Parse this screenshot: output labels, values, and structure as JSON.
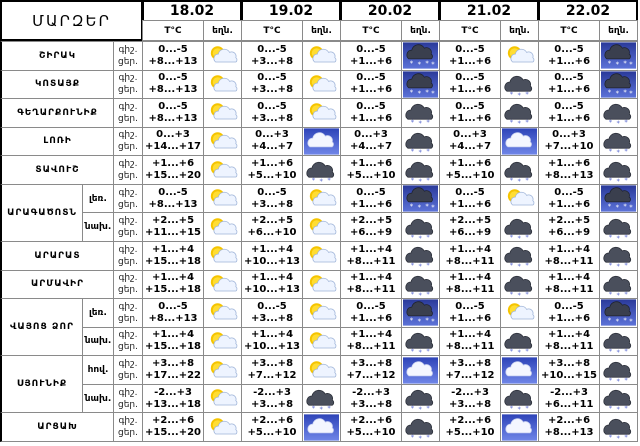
{
  "header": {
    "title": "ՄԱՐԶԵՐ",
    "dates": [
      "18.02",
      "19.02",
      "20.02",
      "21.02",
      "22.02"
    ],
    "temp_label": "T°C",
    "icon_label": "եղն."
  },
  "night_label": "գիշ.",
  "day_label": "ցեր.",
  "groups": [
    {
      "region": "ՇԻՐԱԿ",
      "zones": [
        {
          "days": [
            {
              "night": "0...-5",
              "day": "+8...+13",
              "icon": "sun-cloud"
            },
            {
              "night": "0...-5",
              "day": "+3...+8",
              "icon": "sun-cloud"
            },
            {
              "night": "0...-5",
              "day": "+1...+6",
              "icon": "snow"
            },
            {
              "night": "0...-5",
              "day": "+1...+6",
              "icon": "sun-cloud"
            },
            {
              "night": "0...-5",
              "day": "+1...+6",
              "icon": "snow"
            }
          ]
        }
      ]
    },
    {
      "region": "ԿՈՏԱՅՔ",
      "zones": [
        {
          "days": [
            {
              "night": "0...-5",
              "day": "+8...+13",
              "icon": "sun-cloud"
            },
            {
              "night": "0...-5",
              "day": "+3...+8",
              "icon": "sun-cloud"
            },
            {
              "night": "0...-5",
              "day": "+1...+6",
              "icon": "snow"
            },
            {
              "night": "0...-5",
              "day": "+1...+6",
              "icon": "cloud-snow"
            },
            {
              "night": "0...-5",
              "day": "+1...+6",
              "icon": "snow"
            }
          ]
        }
      ]
    },
    {
      "region": "ԳԵՂԱՐՔՈՒՆԻՔ",
      "zones": [
        {
          "days": [
            {
              "night": "0...-5",
              "day": "+8...+13",
              "icon": "sun-cloud"
            },
            {
              "night": "0...-5",
              "day": "+3...+8",
              "icon": "sun-cloud"
            },
            {
              "night": "0...-5",
              "day": "+1...+6",
              "icon": "cloud-snow"
            },
            {
              "night": "0...-5",
              "day": "+1...+6",
              "icon": "cloud-snow"
            },
            {
              "night": "0...-5",
              "day": "+1...+6",
              "icon": "cloud-snow"
            }
          ]
        }
      ]
    },
    {
      "region": "ԼՈՌԻ",
      "zones": [
        {
          "days": [
            {
              "night": "0...+3",
              "day": "+14...+17",
              "icon": "sun-cloud"
            },
            {
              "night": "0...+3",
              "day": "+4...+7",
              "icon": "cloud"
            },
            {
              "night": "0...+3",
              "day": "+4...+7",
              "icon": "cloud-snow"
            },
            {
              "night": "0...+3",
              "day": "+4...+7",
              "icon": "cloud"
            },
            {
              "night": "0...+3",
              "day": "+7...+10",
              "icon": "cloud-snow"
            }
          ]
        }
      ]
    },
    {
      "region": "ՏԱՎՈՒՇ",
      "zones": [
        {
          "days": [
            {
              "night": "+1...+6",
              "day": "+15...+20",
              "icon": "sun-cloud"
            },
            {
              "night": "+1...+6",
              "day": "+5...+10",
              "icon": "cloud-snow"
            },
            {
              "night": "+1...+6",
              "day": "+5...+10",
              "icon": "cloud-snow"
            },
            {
              "night": "+1...+6",
              "day": "+5...+10",
              "icon": "cloud-snow"
            },
            {
              "night": "+1...+6",
              "day": "+8...+13",
              "icon": "cloud-snow"
            }
          ]
        }
      ]
    },
    {
      "region": "ԱՐԱԳԱԾՈՏՆ",
      "zones": [
        {
          "zone": "լեռ.",
          "days": [
            {
              "night": "0...-5",
              "day": "+8...+13",
              "icon": "sun-cloud"
            },
            {
              "night": "0...-5",
              "day": "+3...+8",
              "icon": "sun-cloud"
            },
            {
              "night": "0...-5",
              "day": "+1...+6",
              "icon": "snow"
            },
            {
              "night": "0...-5",
              "day": "+1...+6",
              "icon": "sun-cloud"
            },
            {
              "night": "0...-5",
              "day": "+1...+6",
              "icon": "snow"
            }
          ]
        },
        {
          "zone": "նախ.",
          "days": [
            {
              "night": "+2...+5",
              "day": "+11...+15",
              "icon": "sun-cloud"
            },
            {
              "night": "+2...+5",
              "day": "+6...+10",
              "icon": "sun-cloud"
            },
            {
              "night": "+2...+5",
              "day": "+6...+9",
              "icon": "cloud-snow"
            },
            {
              "night": "+2...+5",
              "day": "+6...+9",
              "icon": "cloud-snow"
            },
            {
              "night": "+2...+5",
              "day": "+6...+9",
              "icon": "cloud-snow"
            }
          ]
        }
      ]
    },
    {
      "region": "ԱՐԱՐԱՏ",
      "zones": [
        {
          "days": [
            {
              "night": "+1...+4",
              "day": "+15...+18",
              "icon": "sun-cloud"
            },
            {
              "night": "+1...+4",
              "day": "+10...+13",
              "icon": "sun-cloud"
            },
            {
              "night": "+1...+4",
              "day": "+8...+11",
              "icon": "cloud-snow"
            },
            {
              "night": "+1...+4",
              "day": "+8...+11",
              "icon": "cloud-snow"
            },
            {
              "night": "+1...+4",
              "day": "+8...+11",
              "icon": "cloud-snow"
            }
          ]
        }
      ]
    },
    {
      "region": "ԱՐՄԱՎԻՐ",
      "zones": [
        {
          "days": [
            {
              "night": "+1...+4",
              "day": "+15...+18",
              "icon": "sun-cloud"
            },
            {
              "night": "+1...+4",
              "day": "+10...+13",
              "icon": "sun-cloud"
            },
            {
              "night": "+1...+4",
              "day": "+8...+11",
              "icon": "cloud-snow"
            },
            {
              "night": "+1...+4",
              "day": "+8...+11",
              "icon": "cloud-snow"
            },
            {
              "night": "+1...+4",
              "day": "+8...+11",
              "icon": "cloud-snow"
            }
          ]
        }
      ]
    },
    {
      "region": "ՎԱՅՈՑ ՁՈՐ",
      "zones": [
        {
          "zone": "լեռ.",
          "days": [
            {
              "night": "0...-5",
              "day": "+8...+13",
              "icon": "sun-cloud"
            },
            {
              "night": "0...-5",
              "day": "+3...+8",
              "icon": "sun-cloud"
            },
            {
              "night": "0...-5",
              "day": "+1...+6",
              "icon": "snow"
            },
            {
              "night": "0...-5",
              "day": "+1...+6",
              "icon": "sun-cloud"
            },
            {
              "night": "0...-5",
              "day": "+1...+6",
              "icon": "snow"
            }
          ]
        },
        {
          "zone": "նախ.",
          "days": [
            {
              "night": "+1...+4",
              "day": "+15...+18",
              "icon": "sun-cloud"
            },
            {
              "night": "+1...+4",
              "day": "+10...+13",
              "icon": "sun-cloud"
            },
            {
              "night": "+1...+4",
              "day": "+8...+11",
              "icon": "cloud-snow"
            },
            {
              "night": "+1...+4",
              "day": "+8...+11",
              "icon": "cloud-snow"
            },
            {
              "night": "+1...+4",
              "day": "+8...+11",
              "icon": "cloud-snow"
            }
          ]
        }
      ]
    },
    {
      "region": "ՍՅՈՒՆԻՔ",
      "zones": [
        {
          "zone": "հով.",
          "days": [
            {
              "night": "+3...+8",
              "day": "+17...+22",
              "icon": "sun-cloud"
            },
            {
              "night": "+3...+8",
              "day": "+7...+12",
              "icon": "sun-cloud"
            },
            {
              "night": "+3...+8",
              "day": "+7...+12",
              "icon": "cloud"
            },
            {
              "night": "+3...+8",
              "day": "+7...+12",
              "icon": "cloud"
            },
            {
              "night": "+3...+8",
              "day": "+10...+15",
              "icon": "cloud-snow"
            }
          ]
        },
        {
          "zone": "նախ.",
          "days": [
            {
              "night": "-2...+3",
              "day": "+13...+18",
              "icon": "sun-cloud"
            },
            {
              "night": "-2...+3",
              "day": "+3...+8",
              "icon": "cloud-snow"
            },
            {
              "night": "-2...+3",
              "day": "+3...+8",
              "icon": "cloud-snow"
            },
            {
              "night": "-2...+3",
              "day": "+3...+8",
              "icon": "cloud-snow"
            },
            {
              "night": "-2...+3",
              "day": "+6...+11",
              "icon": "cloud-snow"
            }
          ]
        }
      ]
    },
    {
      "region": "ԱՐՑԱԽ",
      "zones": [
        {
          "days": [
            {
              "night": "+2...+6",
              "day": "+15...+20",
              "icon": "sun-cloud"
            },
            {
              "night": "+2...+6",
              "day": "+5...+10",
              "icon": "cloud"
            },
            {
              "night": "+2...+6",
              "day": "+5...+10",
              "icon": "cloud-snow"
            },
            {
              "night": "+2...+6",
              "day": "+5...+10",
              "icon": "cloud"
            },
            {
              "night": "+2...+6",
              "day": "+8...+13",
              "icon": "cloud-snow"
            }
          ]
        }
      ]
    }
  ]
}
